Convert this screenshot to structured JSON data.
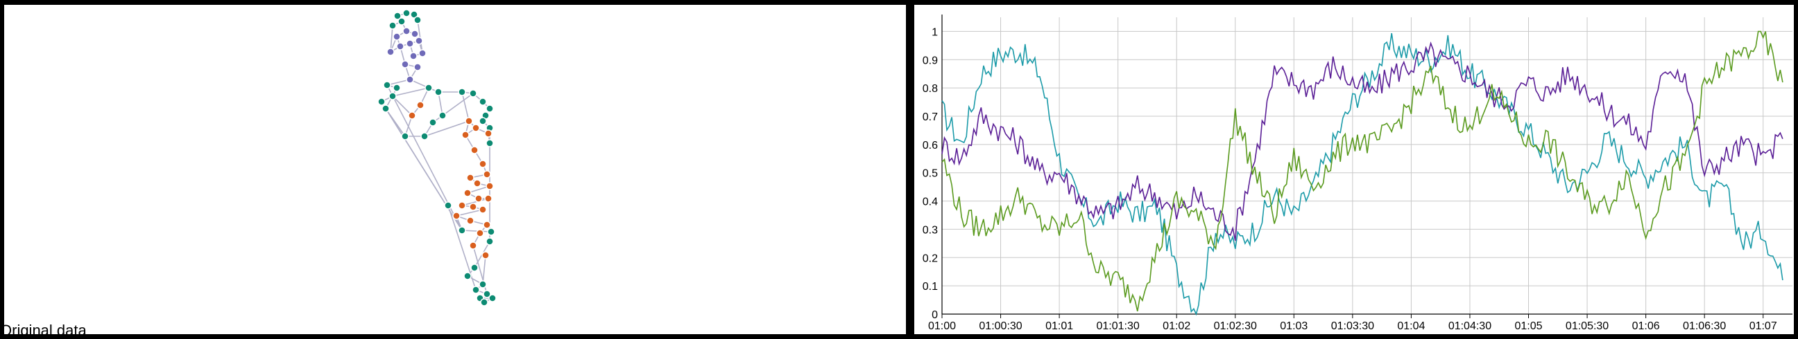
{
  "caption": "Original data",
  "graph": {
    "node_colors": {
      "teal": "#0d8b73",
      "purple": "#6f6ab8",
      "orange": "#d95f1e"
    },
    "edge_color": "#b0b0c8"
  },
  "chart_data": {
    "type": "line",
    "title": "",
    "xlabel": "",
    "ylabel": "",
    "grid": true,
    "xlim": [
      "01:00",
      "01:07:15"
    ],
    "ylim": [
      0,
      1.05
    ],
    "x_ticks": [
      "01:00",
      "01:00:30",
      "01:01",
      "01:01:30",
      "01:02",
      "01:02:30",
      "01:03",
      "01:03:30",
      "01:04",
      "01:04:30",
      "01:05",
      "01:05:30",
      "01:06",
      "01:06:30",
      "01:07"
    ],
    "y_ticks": [
      "0",
      "0.1",
      "0.2",
      "0.3",
      "0.4",
      "0.5",
      "0.6",
      "0.7",
      "0.8",
      "0.9",
      "1"
    ],
    "series": [
      {
        "color": "#1a9aa8",
        "x": [
          "01:00",
          "01:00:10",
          "01:00:20",
          "01:00:30",
          "01:00:40",
          "01:00:50",
          "01:01",
          "01:01:10",
          "01:01:20",
          "01:01:30",
          "01:01:40",
          "01:01:50",
          "01:02",
          "01:02:10",
          "01:02:20",
          "01:02:30",
          "01:02:40",
          "01:02:50",
          "01:03",
          "01:03:10",
          "01:03:20",
          "01:03:30",
          "01:03:40",
          "01:03:50",
          "01:04",
          "01:04:10",
          "01:04:20",
          "01:04:30",
          "01:04:40",
          "01:04:50",
          "01:05",
          "01:05:10",
          "01:05:20",
          "01:05:30",
          "01:05:40",
          "01:05:50",
          "01:06",
          "01:06:10",
          "01:06:20",
          "01:06:30",
          "01:06:40",
          "01:06:50",
          "01:07",
          "01:07:10"
        ],
        "y": [
          0.72,
          0.6,
          0.85,
          0.92,
          0.93,
          0.85,
          0.55,
          0.4,
          0.32,
          0.4,
          0.35,
          0.38,
          0.15,
          0.02,
          0.3,
          0.25,
          0.3,
          0.42,
          0.35,
          0.45,
          0.6,
          0.75,
          0.85,
          0.95,
          0.92,
          0.9,
          0.95,
          0.85,
          0.8,
          0.72,
          0.65,
          0.55,
          0.45,
          0.5,
          0.62,
          0.55,
          0.48,
          0.55,
          0.6,
          0.4,
          0.45,
          0.25,
          0.3,
          0.12
        ]
      },
      {
        "color": "#5a1e96",
        "x": [
          "01:00",
          "01:00:10",
          "01:00:20",
          "01:00:30",
          "01:00:40",
          "01:00:50",
          "01:01",
          "01:01:10",
          "01:01:20",
          "01:01:30",
          "01:01:40",
          "01:01:50",
          "01:02",
          "01:02:10",
          "01:02:20",
          "01:02:30",
          "01:02:40",
          "01:02:50",
          "01:03",
          "01:03:10",
          "01:03:20",
          "01:03:30",
          "01:03:40",
          "01:03:50",
          "01:04",
          "01:04:10",
          "01:04:20",
          "01:04:30",
          "01:04:40",
          "01:04:50",
          "01:05",
          "01:05:10",
          "01:05:20",
          "01:05:30",
          "01:05:40",
          "01:05:50",
          "01:06",
          "01:06:10",
          "01:06:20",
          "01:06:30",
          "01:06:40",
          "01:06:50",
          "01:07",
          "01:07:10"
        ],
        "y": [
          0.6,
          0.55,
          0.7,
          0.65,
          0.6,
          0.5,
          0.5,
          0.42,
          0.35,
          0.38,
          0.45,
          0.42,
          0.35,
          0.42,
          0.35,
          0.3,
          0.55,
          0.85,
          0.82,
          0.8,
          0.88,
          0.82,
          0.78,
          0.85,
          0.88,
          0.92,
          0.88,
          0.85,
          0.78,
          0.75,
          0.82,
          0.78,
          0.85,
          0.8,
          0.72,
          0.68,
          0.6,
          0.88,
          0.85,
          0.5,
          0.55,
          0.6,
          0.55,
          0.62
        ]
      },
      {
        "color": "#5a9a1e",
        "x": [
          "01:00",
          "01:00:10",
          "01:00:20",
          "01:00:30",
          "01:00:40",
          "01:00:50",
          "01:01",
          "01:01:10",
          "01:01:20",
          "01:01:30",
          "01:01:40",
          "01:01:50",
          "01:02",
          "01:02:10",
          "01:02:20",
          "01:02:30",
          "01:02:40",
          "01:02:50",
          "01:03",
          "01:03:10",
          "01:03:20",
          "01:03:30",
          "01:03:40",
          "01:03:50",
          "01:04",
          "01:04:10",
          "01:04:20",
          "01:04:30",
          "01:04:40",
          "01:04:50",
          "01:05",
          "01:05:10",
          "01:05:20",
          "01:05:30",
          "01:05:40",
          "01:05:50",
          "01:06",
          "01:06:10",
          "01:06:20",
          "01:06:30",
          "01:06:40",
          "01:06:50",
          "01:07",
          "01:07:10"
        ],
        "y": [
          0.55,
          0.35,
          0.3,
          0.35,
          0.42,
          0.32,
          0.3,
          0.35,
          0.15,
          0.12,
          0.05,
          0.22,
          0.4,
          0.35,
          0.25,
          0.7,
          0.5,
          0.35,
          0.55,
          0.45,
          0.55,
          0.62,
          0.6,
          0.65,
          0.75,
          0.85,
          0.72,
          0.65,
          0.78,
          0.72,
          0.6,
          0.62,
          0.5,
          0.4,
          0.38,
          0.5,
          0.3,
          0.45,
          0.55,
          0.8,
          0.88,
          0.92,
          0.98,
          0.82
        ]
      }
    ]
  }
}
